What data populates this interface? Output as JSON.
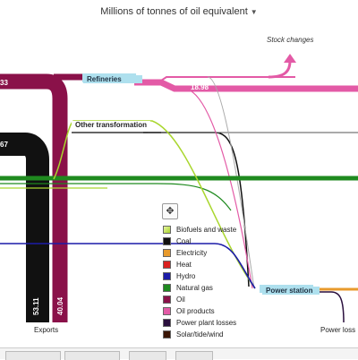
{
  "unit_selector": {
    "label": "Millions of tonnes of oil equivalent",
    "caret": "▼"
  },
  "stock_changes_label": "Stock changes",
  "nodes": {
    "refineries": "Refineries",
    "other_transformation": "Other transformation",
    "power_station": "Power station",
    "exports": "Exports",
    "power_losses": "Power loss"
  },
  "flow_values": {
    "oil_products": "18.98",
    "left_top": "33",
    "left_mid": "67",
    "coal_exports": "53.11",
    "oil_exports": "40.04"
  },
  "legend": {
    "move_icon": "move-icon",
    "items": [
      {
        "label": "Biofuels and waste",
        "color": "#a9d62e",
        "pattern": "gradient"
      },
      {
        "label": "Coal",
        "color": "#111111"
      },
      {
        "label": "Electricity",
        "color": "#e89a2c"
      },
      {
        "label": "Heat",
        "color": "#d9201f"
      },
      {
        "label": "Hydro",
        "color": "#1c1ca8"
      },
      {
        "label": "Natural gas",
        "color": "#1f8a1f"
      },
      {
        "label": "Oil",
        "color": "#8a1149"
      },
      {
        "label": "Oil products",
        "color": "#e35aa6"
      },
      {
        "label": "Power plant losses",
        "color": "#2a0f3d"
      },
      {
        "label": "Solar/tide/wind",
        "color": "#3a1505"
      }
    ]
  },
  "colors": {
    "oil": "#8a1149",
    "coal": "#111111",
    "oil_products": "#e35aa6",
    "natural_gas": "#1f8a1f",
    "biofuels": "#a9d62e",
    "hydro": "#1c1ca8",
    "electricity": "#e89a2c",
    "node": "#aee0ee"
  }
}
